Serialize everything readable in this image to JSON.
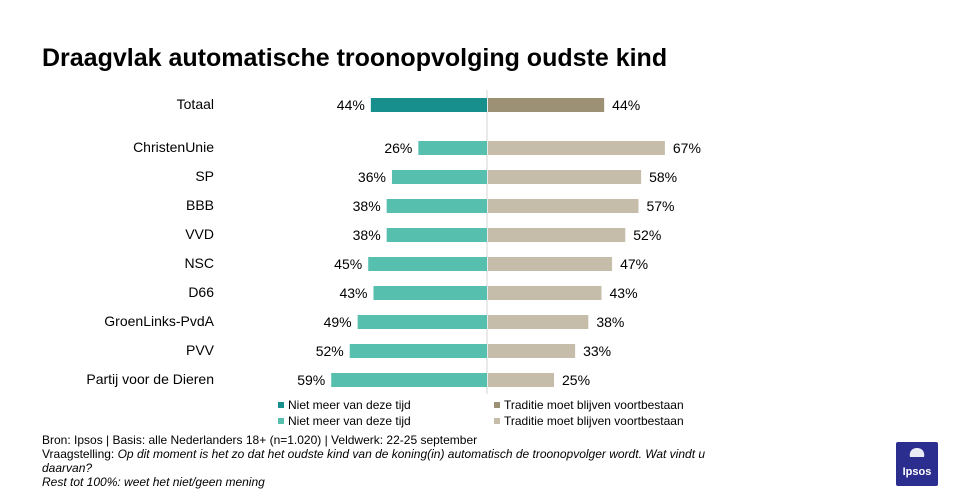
{
  "chart_data": {
    "type": "bar",
    "title": "Draagvlak automatische troonopvolging oudste kind",
    "categories": [
      "Totaal",
      "ChristenUnie",
      "SP",
      "BBB",
      "VVD",
      "NSC",
      "D66",
      "GroenLinks-PvdA",
      "PVV",
      "Partij voor de Dieren"
    ],
    "series": [
      {
        "name": "Niet meer van deze tijd",
        "values": [
          44,
          26,
          36,
          38,
          38,
          45,
          43,
          49,
          52,
          59
        ],
        "value_labels": [
          "44%",
          "26%",
          "36%",
          "38%",
          "38%",
          "45%",
          "43%",
          "49%",
          "52%",
          "59%"
        ],
        "color_total": "#178f8c",
        "color": "#56bfae"
      },
      {
        "name": "Traditie moet blijven voortbestaan",
        "values": [
          44,
          67,
          58,
          57,
          52,
          47,
          43,
          38,
          33,
          25
        ],
        "value_labels": [
          "44%",
          "67%",
          "58%",
          "57%",
          "52%",
          "47%",
          "43%",
          "38%",
          "33%",
          "25%"
        ],
        "color_total": "#9c9075",
        "color": "#c5bdaa"
      }
    ],
    "legend": [
      {
        "label": "Niet meer van deze tijd",
        "color": "#178f8c"
      },
      {
        "label": "Traditie moet blijven voortbestaan",
        "color": "#9c9075"
      },
      {
        "label": "Niet meer van deze tijd",
        "color": "#56bfae"
      },
      {
        "label": "Traditie moet blijven voortbestaan",
        "color": "#c5bdaa"
      }
    ],
    "legend_position": "bottom",
    "layout": "diverging"
  },
  "footer": {
    "source": "Bron: Ipsos | Basis: alle Nederlanders  18+ (n=1.020) | Veldwerk: 22-25  september",
    "question_label": "Vraagstelling:",
    "question": " Op dit moment is het zo dat het oudste kind van de koning(in) automatisch de troonopvolger wordt.  Wat vindt u daarvan?",
    "rest": "Rest tot 100%: weet  het niet/geen mening"
  },
  "logo": {
    "text": "Ipsos",
    "color": "#2b2d8f"
  }
}
